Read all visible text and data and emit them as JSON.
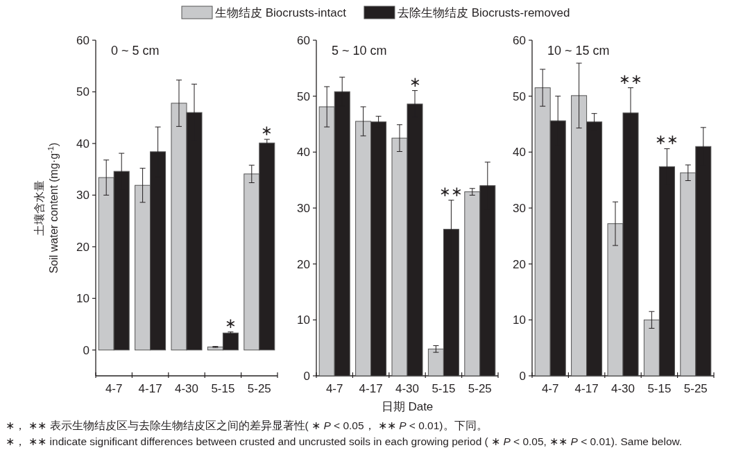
{
  "chart_data": [
    {
      "type": "bar",
      "title": "0 ~ 5 cm",
      "ylabel": "土壤含水量 Soil water content (mg·g$^{-1}$)",
      "categories": [
        "4-7",
        "4-17",
        "4-30",
        "5-15",
        "5-25"
      ],
      "ylim": [
        -5,
        60
      ],
      "yticks": [
        0,
        10,
        20,
        30,
        40,
        50,
        60
      ],
      "legend": "top",
      "series": [
        {
          "name": "生物结皮 Biocrusts-intact",
          "color": "#c8c9cb",
          "values": [
            33.4,
            31.9,
            47.8,
            0.6,
            34.1
          ],
          "errors": [
            3.4,
            3.3,
            4.5,
            0.1,
            1.7
          ]
        },
        {
          "name": "去除生物结皮 Biocrusts-removed",
          "color": "#231f20",
          "values": [
            34.6,
            38.4,
            46.0,
            3.3,
            40.1
          ],
          "errors": [
            3.5,
            4.8,
            5.5,
            0.2,
            0.7
          ],
          "value_labels": [
            null,
            null,
            null,
            "∗",
            "∗"
          ]
        }
      ]
    },
    {
      "type": "bar",
      "title": "5 ~ 10 cm",
      "xlabel": "日期 Date",
      "categories": [
        "4-7",
        "4-17",
        "4-30",
        "5-15",
        "5-25"
      ],
      "ylim": [
        0,
        60
      ],
      "yticks": [
        0,
        10,
        20,
        30,
        40,
        50,
        60
      ],
      "series": [
        {
          "color": "#c8c9cb",
          "values": [
            48.1,
            45.5,
            42.5,
            4.8,
            32.9
          ],
          "errors": [
            3.6,
            2.6,
            2.4,
            0.6,
            0.6
          ]
        },
        {
          "color": "#231f20",
          "values": [
            50.8,
            45.4,
            48.6,
            26.2,
            34.0
          ],
          "errors": [
            2.6,
            1.0,
            2.4,
            5.2,
            4.2
          ],
          "value_labels": [
            null,
            null,
            "∗",
            "∗∗",
            null
          ]
        }
      ],
      "annotations": [
        "∗， ∗∗ 表示生物结皮区与去除生物结皮区之间的差异显著性( ∗ *P* < 0.05， ∗∗ *P* < 0.01)。下同。",
        "∗， ∗∗ indicate significant differences between crusted and uncrusted soils in each growing period ( ∗ *P* < 0.05, ∗∗ *P* < 0.01). Same below."
      ]
    },
    {
      "type": "bar",
      "title": "10 ~ 15 cm",
      "categories": [
        "4-7",
        "4-17",
        "4-30",
        "5-15",
        "5-25"
      ],
      "ylim": [
        0,
        60
      ],
      "yticks": [
        0,
        10,
        20,
        30,
        40,
        50,
        60
      ],
      "series": [
        {
          "color": "#c8c9cb",
          "values": [
            51.5,
            50.1,
            27.2,
            10.0,
            36.3
          ],
          "errors": [
            3.3,
            5.8,
            3.9,
            1.5,
            1.4
          ]
        },
        {
          "color": "#231f20",
          "values": [
            45.6,
            45.4,
            47.0,
            37.4,
            41.0
          ],
          "errors": [
            4.4,
            1.5,
            4.5,
            3.2,
            3.4
          ],
          "value_labels": [
            null,
            null,
            "∗∗",
            "∗∗",
            null
          ]
        }
      ]
    }
  ]
}
